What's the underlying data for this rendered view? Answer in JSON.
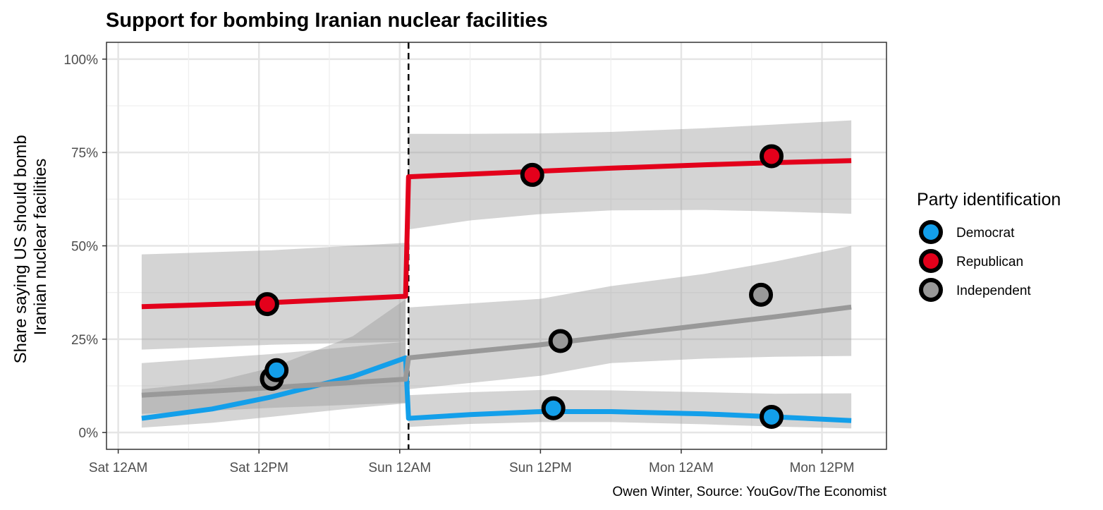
{
  "chart_data": {
    "type": "line",
    "title": "Support for bombing Iranian nuclear facilities",
    "ylabel": "Share saying US should bomb\nIranian nuclear facilities",
    "ylabel_lines": [
      "Share saying US should bomb",
      "Iranian nuclear facilities"
    ],
    "xlabel": "",
    "caption": "Owen Winter, Source: YouGov/The Economist",
    "x_units": "hours since Sat 12AM",
    "xlim": [
      -1,
      65.5
    ],
    "ylim": [
      -4.5,
      104.5
    ],
    "x_ticks": [
      {
        "value": 0,
        "label": "Sat 12AM"
      },
      {
        "value": 12,
        "label": "Sat 12PM"
      },
      {
        "value": 24,
        "label": "Sun 12AM"
      },
      {
        "value": 36,
        "label": "Sun 12PM"
      },
      {
        "value": 48,
        "label": "Mon 12AM"
      },
      {
        "value": 60,
        "label": "Mon 12PM"
      }
    ],
    "y_ticks": [
      {
        "value": 0,
        "label": "0%"
      },
      {
        "value": 25,
        "label": "25%"
      },
      {
        "value": 50,
        "label": "50%"
      },
      {
        "value": 75,
        "label": "75%"
      },
      {
        "value": 100,
        "label": "100%"
      }
    ],
    "event_line_x": 24.75,
    "grid": true,
    "legend": {
      "title": "Party identification",
      "placement": "right"
    },
    "series": [
      {
        "name": "Democrat",
        "color": "#139FEA",
        "points": [
          {
            "x": 13.5,
            "y": 16.7
          },
          {
            "x": 37.1,
            "y": 6.5
          },
          {
            "x": 55.7,
            "y": 4.2
          }
        ],
        "segments": [
          {
            "x": [
              2,
              8,
              13,
              20,
              24.5
            ],
            "est": [
              3.8,
              6.3,
              9.5,
              15.0,
              20.0
            ],
            "lo": [
              1.3,
              2.6,
              4.2,
              6.5,
              7.8
            ],
            "hi": [
              11.6,
              13.5,
              17.3,
              25.8,
              35.7
            ]
          },
          {
            "x": [
              24.75,
              30,
              36,
              42,
              50,
              56,
              62.5
            ],
            "est": [
              3.8,
              4.8,
              5.6,
              5.6,
              5.0,
              4.2,
              3.2
            ],
            "lo": [
              1.5,
              2.3,
              2.8,
              2.8,
              2.2,
              1.6,
              1.1
            ],
            "hi": [
              10.0,
              10.8,
              11.4,
              11.3,
              10.8,
              10.4,
              10.5
            ]
          }
        ]
      },
      {
        "name": "Republican",
        "color": "#E3001B",
        "points": [
          {
            "x": 12.7,
            "y": 34.4
          },
          {
            "x": 35.3,
            "y": 69.0
          },
          {
            "x": 55.7,
            "y": 74.0
          }
        ],
        "segments": [
          {
            "x": [
              2,
              13,
              24.5
            ],
            "est": [
              33.7,
              34.8,
              36.5
            ],
            "lo": [
              22.2,
              23.5,
              24.3
            ],
            "hi": [
              47.7,
              48.8,
              50.8
            ]
          },
          {
            "x": [
              24.75,
              30,
              36,
              42,
              50,
              56,
              62.5
            ],
            "est": [
              68.5,
              69.2,
              70.0,
              70.8,
              71.7,
              72.3,
              72.8
            ],
            "lo": [
              54.4,
              56.8,
              58.5,
              59.5,
              59.6,
              59.2,
              58.6
            ],
            "hi": [
              80.0,
              80.0,
              80.1,
              80.5,
              81.5,
              82.5,
              83.6
            ]
          }
        ]
      },
      {
        "name": "Independent",
        "color": "#999999",
        "points": [
          {
            "x": 13.1,
            "y": 14.4
          },
          {
            "x": 37.7,
            "y": 24.5
          },
          {
            "x": 54.8,
            "y": 36.9
          }
        ],
        "segments": [
          {
            "x": [
              2,
              13,
              24.5
            ],
            "est": [
              10.0,
              12.0,
              14.3
            ],
            "lo": [
              5.0,
              6.6,
              8.0
            ],
            "hi": [
              18.6,
              21.0,
              24.3
            ]
          },
          {
            "x": [
              24.75,
              36,
              42,
              50,
              56,
              62.5
            ],
            "est": [
              20.0,
              23.5,
              25.8,
              28.8,
              31.0,
              33.6
            ],
            "lo": [
              11.6,
              15.2,
              18.6,
              19.8,
              20.3,
              20.5
            ],
            "hi": [
              33.5,
              35.8,
              39.2,
              42.5,
              45.8,
              50.0
            ]
          }
        ]
      }
    ]
  }
}
